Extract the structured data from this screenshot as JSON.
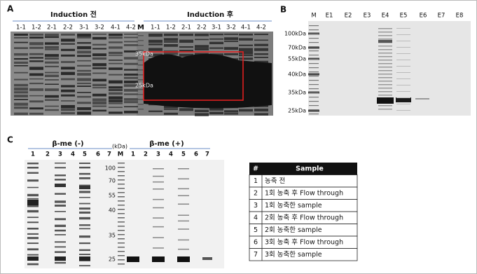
{
  "panel_a": {
    "label": "A",
    "group_labels": [
      "Induction 전",
      "Induction 후"
    ],
    "lanes_left": [
      "1-1",
      "1-2",
      "2-1",
      "2-2",
      "3-1",
      "3-2",
      "4-1",
      "4-2"
    ],
    "marker": "M",
    "lanes_right": [
      "1-1",
      "1-2",
      "2-1",
      "2-2",
      "3-1",
      "3-2",
      "4-1",
      "4-2"
    ],
    "marker_labels": [
      "35kDa",
      "25kDa"
    ]
  },
  "panel_b": {
    "label": "B",
    "lanes": [
      "M",
      "E1",
      "E2",
      "E3",
      "E4",
      "E5",
      "E6",
      "E7",
      "E8"
    ],
    "mw_labels": [
      "100kDa",
      "70kDa",
      "55kDa",
      "40kDa",
      "35kDa",
      "25kDa"
    ]
  },
  "panel_c": {
    "label": "C",
    "group_labels": [
      "β-me (-)",
      "β-me (+)"
    ],
    "kda_label": "(kDa)",
    "lanes": [
      "1",
      "2",
      "3",
      "4",
      "5",
      "6",
      "7",
      "M",
      "1",
      "2",
      "3",
      "4",
      "5",
      "6",
      "7"
    ],
    "mw_labels": [
      "100",
      "70",
      "55",
      "40",
      "35",
      "25"
    ],
    "table": {
      "header": [
        "#",
        "Sample"
      ],
      "rows": [
        [
          "1",
          "농축 전"
        ],
        [
          "2",
          "1회 농축 후 Flow through"
        ],
        [
          "3",
          "1회 농축한 sample"
        ],
        [
          "4",
          "2회 농축 후 Flow through"
        ],
        [
          "5",
          "2회 농축한 sample"
        ],
        [
          "6",
          "3회 농축 후 Flow through"
        ],
        [
          "7",
          "3회 농축한 sample"
        ]
      ]
    }
  }
}
